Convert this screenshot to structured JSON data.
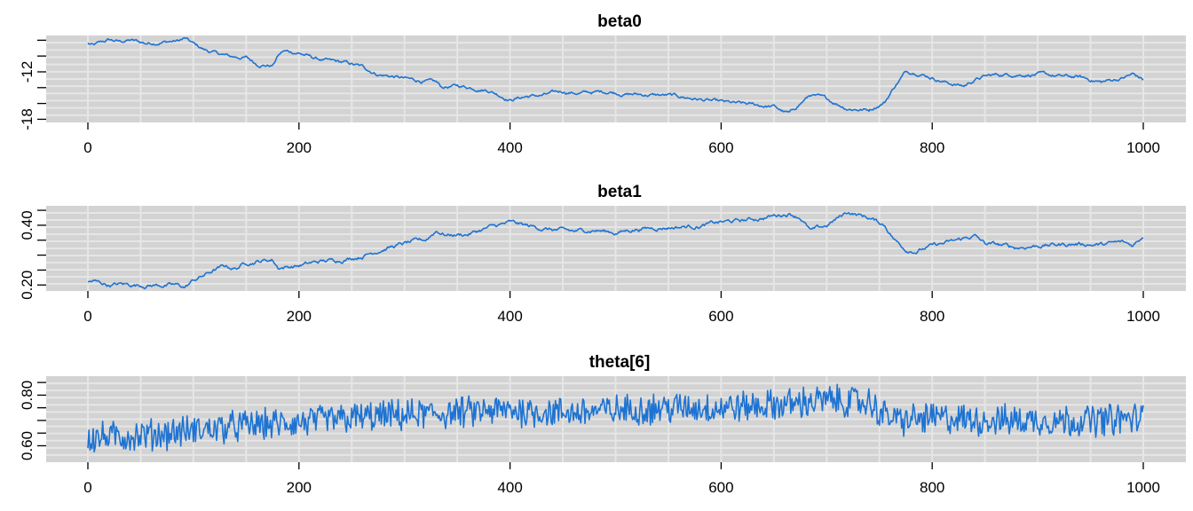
{
  "colors": {
    "panel_background": "#d3d3d3",
    "grid_line": "#e6e6e6",
    "trace_line": "#1e73d2"
  },
  "chart_data": [
    {
      "type": "line",
      "title": "beta0",
      "xlim": [
        0,
        1000
      ],
      "ylim": [
        -18.4,
        -7.4
      ],
      "x_ticks": [
        0,
        200,
        400,
        600,
        800,
        1000
      ],
      "y_ticks": [
        -18,
        -12
      ],
      "y_minor_ticks": [
        -16,
        -14,
        -10,
        -8
      ],
      "noise_band": 0.3,
      "series": [
        {
          "x": [
            0,
            5,
            20,
            30,
            40,
            55,
            70,
            85,
            92,
            100,
            110,
            120,
            135,
            150,
            155,
            160,
            175,
            180,
            185,
            200,
            215,
            230,
            245,
            260,
            275,
            290,
            305,
            320,
            330,
            335,
            350,
            365,
            380,
            400,
            415,
            430,
            450,
            465,
            480,
            495,
            510,
            530,
            550,
            570,
            590,
            610,
            630,
            650,
            660,
            665,
            675,
            685,
            700,
            720,
            740,
            755,
            765,
            775,
            785,
            800,
            815,
            830,
            840,
            850,
            860,
            880,
            900,
            920,
            940,
            960,
            980,
            990,
            1000
          ],
          "y": [
            -8.4,
            -8.7,
            -8.0,
            -8.2,
            -8.0,
            -8.4,
            -8.2,
            -8.1,
            -7.8,
            -8.5,
            -9.2,
            -9.6,
            -10.1,
            -10.2,
            -10.6,
            -11.0,
            -11.2,
            -10.0,
            -9.4,
            -9.6,
            -10.3,
            -10.7,
            -10.9,
            -11.4,
            -12.3,
            -12.6,
            -13.0,
            -13.2,
            -13.4,
            -14.0,
            -13.8,
            -14.0,
            -14.3,
            -15.5,
            -15.1,
            -15.0,
            -14.5,
            -14.7,
            -14.6,
            -14.5,
            -14.8,
            -14.9,
            -15.0,
            -15.3,
            -15.7,
            -16.0,
            -16.2,
            -16.4,
            -17.1,
            -17.3,
            -16.0,
            -14.9,
            -15.5,
            -16.6,
            -16.8,
            -15.8,
            -13.7,
            -12.0,
            -12.0,
            -12.7,
            -13.4,
            -13.8,
            -13.0,
            -12.6,
            -12.4,
            -12.3,
            -12.3,
            -12.6,
            -12.7,
            -13.3,
            -12.8,
            -12.3,
            -13.0
          ]
        }
      ]
    },
    {
      "type": "line",
      "title": "beta1",
      "xlim": [
        0,
        1000
      ],
      "ylim": [
        0.18,
        0.465
      ],
      "x_ticks": [
        0,
        200,
        400,
        600,
        800,
        1000
      ],
      "y_ticks": [
        0.2,
        0.4
      ],
      "y_minor_ticks": [
        0.25,
        0.3,
        0.35,
        0.45
      ],
      "noise_band": 0.009,
      "series": [
        {
          "x": [
            0,
            5,
            20,
            30,
            50,
            70,
            85,
            92,
            100,
            110,
            120,
            130,
            140,
            150,
            160,
            175,
            180,
            185,
            200,
            220,
            240,
            260,
            280,
            300,
            320,
            330,
            340,
            360,
            380,
            400,
            420,
            440,
            460,
            480,
            500,
            520,
            540,
            560,
            580,
            600,
            620,
            640,
            655,
            665,
            675,
            685,
            700,
            720,
            740,
            755,
            765,
            775,
            785,
            800,
            820,
            840,
            850,
            860,
            880,
            900,
            920,
            940,
            960,
            980,
            990,
            1000
          ],
          "y": [
            0.208,
            0.212,
            0.2,
            0.202,
            0.2,
            0.2,
            0.198,
            0.192,
            0.215,
            0.232,
            0.25,
            0.262,
            0.255,
            0.275,
            0.28,
            0.285,
            0.26,
            0.26,
            0.265,
            0.278,
            0.285,
            0.298,
            0.322,
            0.338,
            0.35,
            0.382,
            0.368,
            0.37,
            0.392,
            0.408,
            0.395,
            0.385,
            0.378,
            0.385,
            0.375,
            0.388,
            0.392,
            0.395,
            0.398,
            0.41,
            0.415,
            0.425,
            0.435,
            0.44,
            0.428,
            0.38,
            0.398,
            0.445,
            0.425,
            0.4,
            0.35,
            0.32,
            0.315,
            0.33,
            0.345,
            0.365,
            0.338,
            0.335,
            0.325,
            0.332,
            0.335,
            0.338,
            0.335,
            0.342,
            0.332,
            0.365
          ]
        }
      ]
    },
    {
      "type": "line",
      "title": "theta[6]",
      "xlim": [
        0,
        1000
      ],
      "ylim": [
        0.535,
        0.875
      ],
      "x_ticks": [
        0,
        200,
        400,
        600,
        800,
        1000
      ],
      "y_ticks": [
        0.6,
        0.8
      ],
      "y_minor_ticks": [
        0.65,
        0.7,
        0.75,
        0.85
      ],
      "noise_band": 0.055,
      "series": [
        {
          "x": [
            0,
            50,
            100,
            150,
            200,
            250,
            300,
            350,
            400,
            450,
            500,
            550,
            600,
            650,
            700,
            740,
            755,
            770,
            800,
            850,
            900,
            950,
            1000
          ],
          "y": [
            0.63,
            0.64,
            0.66,
            0.68,
            0.69,
            0.71,
            0.72,
            0.73,
            0.74,
            0.73,
            0.74,
            0.75,
            0.75,
            0.76,
            0.78,
            0.77,
            0.72,
            0.7,
            0.71,
            0.7,
            0.7,
            0.7,
            0.71
          ]
        }
      ]
    }
  ]
}
